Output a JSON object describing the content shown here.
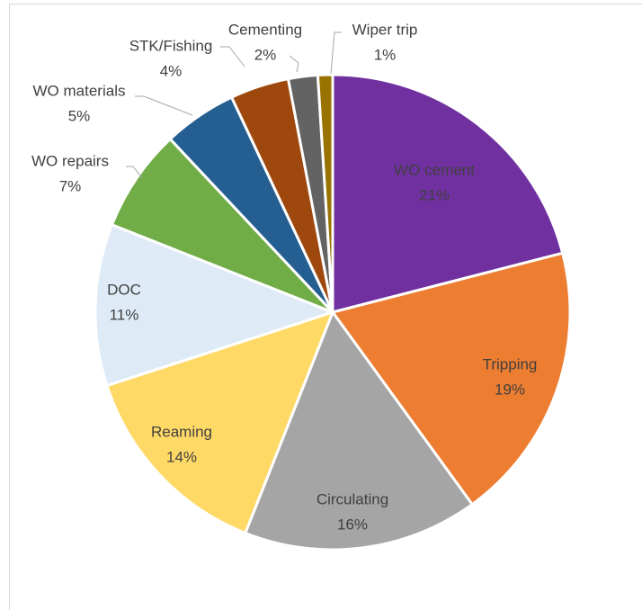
{
  "chart_data": {
    "type": "pie",
    "categories": [
      "WO cement",
      "Tripping",
      "Circulating",
      "Reaming",
      "DOC",
      "WO repairs",
      "WO materials",
      "STK/Fishing",
      "Cementing",
      "Wiper trip"
    ],
    "values": [
      21,
      19,
      16,
      14,
      11,
      7,
      5,
      4,
      2,
      1
    ],
    "value_labels": [
      "21%",
      "19%",
      "16%",
      "14%",
      "11%",
      "7%",
      "5%",
      "4%",
      "2%",
      "1%"
    ],
    "colors": [
      "#7030a0",
      "#ed7d31",
      "#a5a5a5",
      "#ffd966",
      "#deebf7",
      "#70ad47",
      "#255e91",
      "#9e480e",
      "#636363",
      "#997300"
    ]
  }
}
